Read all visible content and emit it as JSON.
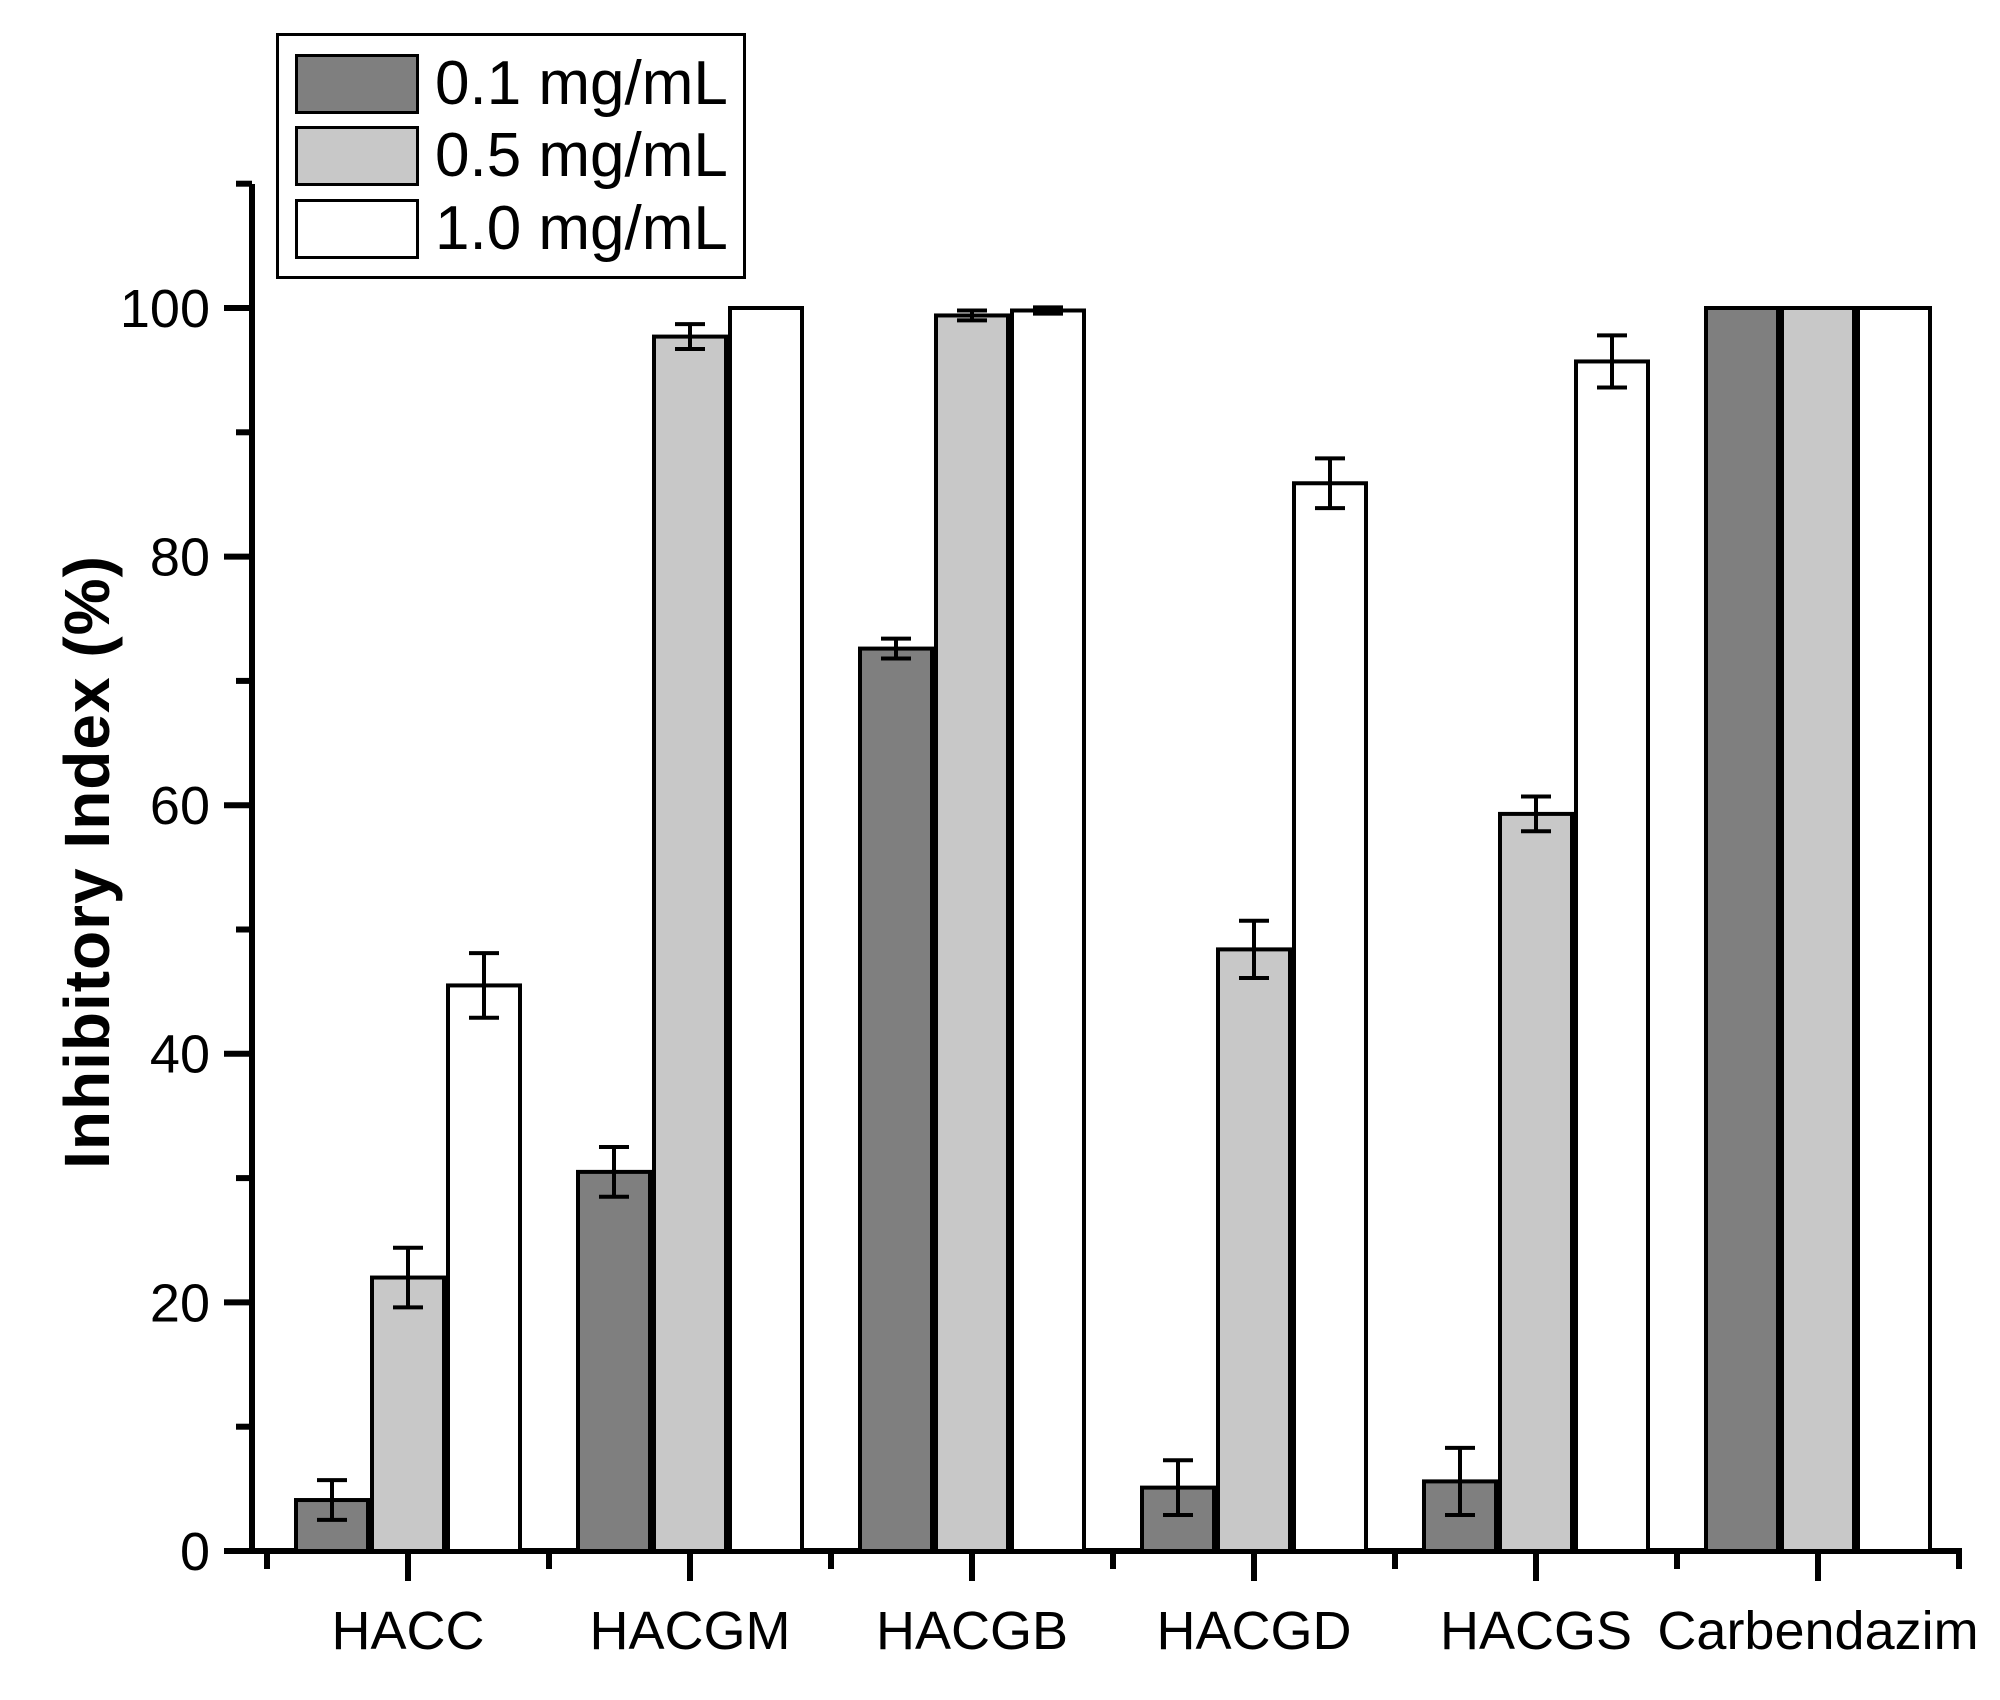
{
  "chart_data": {
    "type": "bar",
    "title": "",
    "xlabel": "",
    "ylabel": "Inhibitory Index (%)",
    "ylim": [
      0,
      113
    ],
    "yticks_major": [
      0,
      20,
      40,
      60,
      80,
      100
    ],
    "yticks_minor": [
      10,
      30,
      50,
      70,
      90,
      110
    ],
    "grid": false,
    "legend_position": "top-left",
    "bar_border_color": "#000000",
    "categories": [
      "HACC",
      "HACGM",
      "HACGB",
      "HACGD",
      "HACGS",
      "Carbendazim"
    ],
    "series": [
      {
        "name": "0.1 mg/mL",
        "color": "#7f7f7f",
        "values": [
          4.1,
          30.5,
          72.6,
          5.1,
          5.6,
          100.0
        ],
        "errors": [
          1.6,
          2.0,
          0.8,
          2.2,
          2.7,
          0
        ]
      },
      {
        "name": "0.5 mg/mL",
        "color": "#c8c8c8",
        "values": [
          22.0,
          97.7,
          99.4,
          48.4,
          59.3,
          100.0
        ],
        "errors": [
          2.4,
          1.0,
          0.4,
          2.3,
          1.4,
          0
        ]
      },
      {
        "name": "1.0 mg/mL",
        "color": "#ffffff",
        "values": [
          45.5,
          100.0,
          99.8,
          85.9,
          95.7,
          100.0
        ],
        "errors": [
          2.6,
          0,
          0.25,
          2.0,
          2.1,
          0
        ]
      }
    ]
  }
}
